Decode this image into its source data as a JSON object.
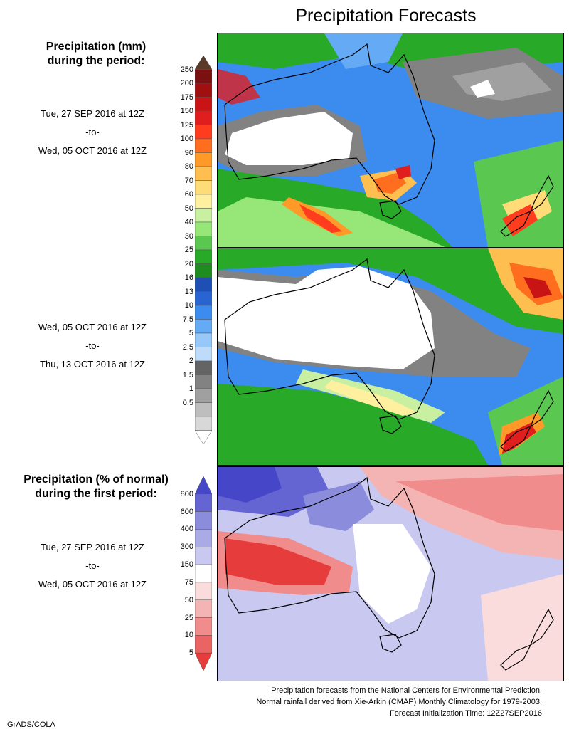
{
  "title": "Precipitation Forecasts",
  "section1": {
    "heading_line1": "Precipitation (mm)",
    "heading_line2": "during the period:",
    "period1": {
      "start": "Tue, 27 SEP 2016 at 12Z",
      "sep": "-to-",
      "end": "Wed, 05 OCT 2016 at 12Z"
    },
    "period2": {
      "start": "Wed, 05 OCT 2016 at 12Z",
      "sep": "-to-",
      "end": "Thu, 13 OCT 2016 at 12Z"
    },
    "colorbar": {
      "labels": [
        "250",
        "200",
        "175",
        "150",
        "125",
        "100",
        "90",
        "80",
        "70",
        "60",
        "50",
        "40",
        "30",
        "25",
        "20",
        "16",
        "13",
        "10",
        "7.5",
        "5",
        "2.5",
        "2",
        "1.5",
        "1",
        "0.5"
      ],
      "colors": [
        "#5a3a28",
        "#7a1010",
        "#a01010",
        "#c81414",
        "#e01e1e",
        "#ff3c1e",
        "#ff6e1e",
        "#ff9a28",
        "#ffbe50",
        "#ffdc78",
        "#fff0a0",
        "#c8f0a0",
        "#96e678",
        "#5ac850",
        "#28aa28",
        "#1e8c1e",
        "#1e50b4",
        "#2864d2",
        "#3c8cf0",
        "#64aaf5",
        "#96c8fa",
        "#bedcfa",
        "#646464",
        "#828282",
        "#a0a0a0",
        "#bebebe",
        "#d8d8d8",
        "#ffffff"
      ]
    }
  },
  "section2": {
    "heading_line1": "Precipitation (% of normal)",
    "heading_line2": "during the first period:",
    "period": {
      "start": "Tue, 27 SEP 2016 at 12Z",
      "sep": "-to-",
      "end": "Wed, 05 OCT 2016 at 12Z"
    },
    "colorbar": {
      "labels": [
        "800",
        "600",
        "400",
        "300",
        "150",
        "75",
        "50",
        "25",
        "10",
        "5"
      ],
      "colors": [
        "#4646c8",
        "#6464d2",
        "#8c8cdc",
        "#aaaae6",
        "#c8c8f0",
        "#ffffff",
        "#fadcdc",
        "#f5b4b4",
        "#f08c8c",
        "#eb6464",
        "#e63c3c"
      ]
    }
  },
  "credits": {
    "line1": "Precipitation forecasts from the National Centers for Environmental Prediction.",
    "line2": "Normal rainfall derived from Xie-Arkin (CMAP) Monthly Climatology for 1979-2003.",
    "line3": "Forecast Initialization Time: 12Z27SEP2016"
  },
  "footer": "GrADS/COLA"
}
